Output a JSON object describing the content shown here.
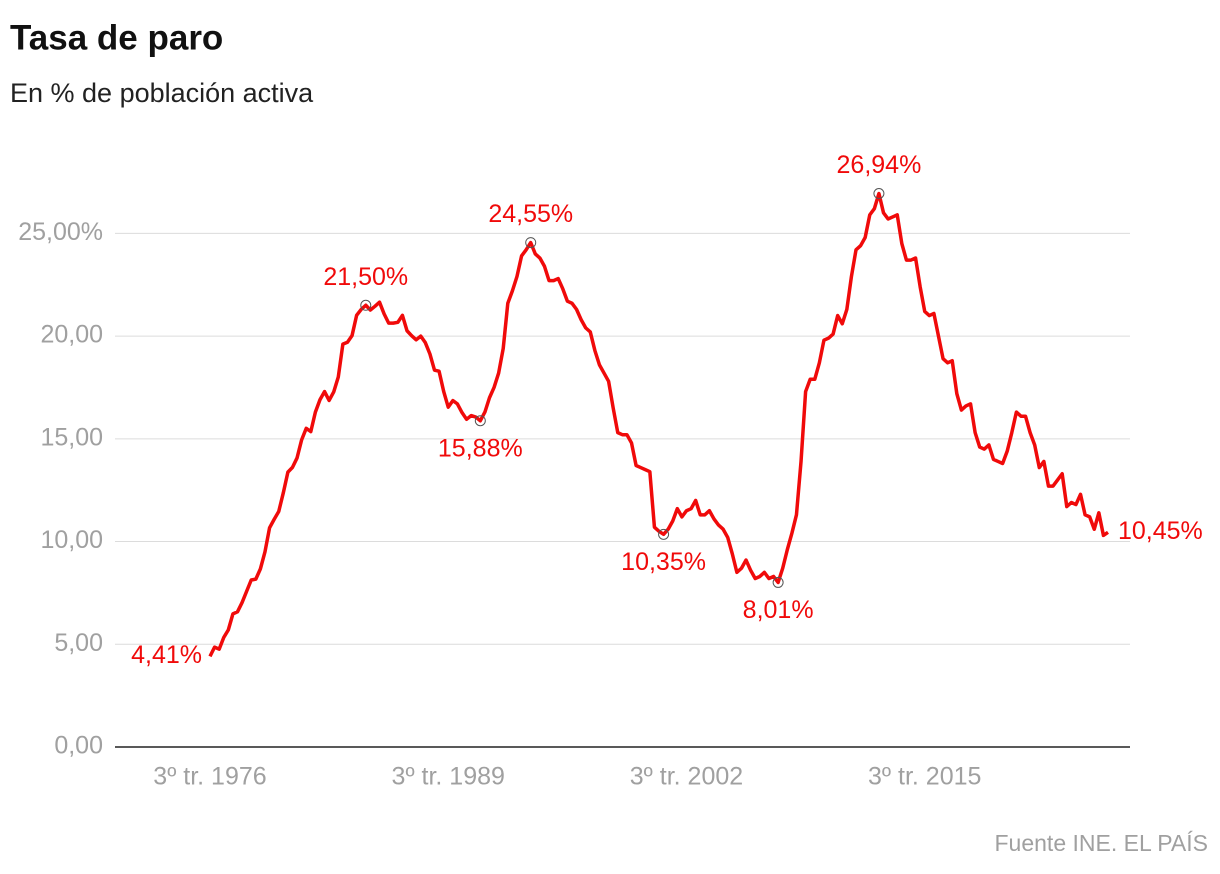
{
  "chart_data": {
    "type": "line",
    "title": "Tasa de paro",
    "subtitle": "En % de población activa",
    "source": "Fuente INE. EL PAÍS",
    "color": "#f00a0a",
    "grid": true,
    "ylim": [
      0,
      27.5
    ],
    "yticks": [
      {
        "value": 0,
        "label": "0,00"
      },
      {
        "value": 5,
        "label": "5,00"
      },
      {
        "value": 10,
        "label": "10,00"
      },
      {
        "value": 15,
        "label": "15,00"
      },
      {
        "value": 20,
        "label": "20,00"
      },
      {
        "value": 25,
        "label": "25,00%"
      }
    ],
    "categories": [
      "3º tr. 1976",
      null,
      null,
      null,
      null,
      null,
      null,
      null,
      null,
      null,
      null,
      null,
      null,
      null,
      null,
      null,
      null,
      null,
      null,
      null,
      null,
      null,
      null,
      null,
      null,
      null,
      null,
      null,
      null,
      null,
      null,
      null,
      null,
      null,
      null,
      null,
      null,
      null,
      null,
      null,
      null,
      null,
      null,
      null,
      null,
      null,
      null,
      null,
      null,
      null,
      null,
      null,
      "3º tr. 1989",
      null,
      null,
      null,
      null,
      null,
      null,
      null,
      null,
      null,
      null,
      null,
      null,
      null,
      null,
      null,
      null,
      null,
      null,
      null,
      null,
      null,
      null,
      null,
      null,
      null,
      null,
      null,
      null,
      null,
      null,
      null,
      null,
      null,
      null,
      null,
      null,
      null,
      null,
      null,
      null,
      null,
      null,
      null,
      null,
      null,
      null,
      null,
      null,
      null,
      null,
      null,
      "3º tr. 2002",
      null,
      null,
      null,
      null,
      null,
      null,
      null,
      null,
      null,
      null,
      null,
      null,
      null,
      null,
      null,
      null,
      null,
      null,
      null,
      null,
      null,
      null,
      null,
      null,
      null,
      null,
      null,
      null,
      null,
      null,
      null,
      null,
      null,
      null,
      null,
      null,
      null,
      null,
      null,
      null,
      null,
      null,
      null,
      null,
      null,
      null,
      null,
      null,
      null,
      null,
      null,
      "3º tr. 2015",
      null,
      null,
      null,
      null,
      null,
      null,
      null,
      null,
      null,
      null,
      null,
      null,
      null,
      null,
      null,
      null,
      null,
      null,
      null,
      null,
      null,
      null,
      null,
      null,
      null,
      null,
      null,
      null,
      null,
      null,
      null,
      null,
      null,
      null,
      null,
      null,
      null,
      null,
      null,
      null
    ],
    "values": [
      4.41,
      4.86,
      4.76,
      5.33,
      5.7,
      6.48,
      6.58,
      7.03,
      7.58,
      8.13,
      8.17,
      8.67,
      9.5,
      10.67,
      11.08,
      11.46,
      12.37,
      13.38,
      13.61,
      14.07,
      14.95,
      15.51,
      15.35,
      16.3,
      16.9,
      17.3,
      16.87,
      17.28,
      18.01,
      19.61,
      19.7,
      20.02,
      21.01,
      21.3,
      21.5,
      21.27,
      21.45,
      21.65,
      21.08,
      20.63,
      20.63,
      20.67,
      21.01,
      20.26,
      20.02,
      19.82,
      20.0,
      19.68,
      19.13,
      18.34,
      18.29,
      17.31,
      16.54,
      16.86,
      16.7,
      16.28,
      15.95,
      16.13,
      16.06,
      15.88,
      16.3,
      17.0,
      17.5,
      18.2,
      19.4,
      21.6,
      22.2,
      22.9,
      23.9,
      24.2,
      24.55,
      24.0,
      23.8,
      23.4,
      22.7,
      22.7,
      22.8,
      22.3,
      21.7,
      21.6,
      21.3,
      20.8,
      20.4,
      20.2,
      19.3,
      18.6,
      18.2,
      17.8,
      16.5,
      15.3,
      15.2,
      15.2,
      14.8,
      13.7,
      13.6,
      13.5,
      13.4,
      10.7,
      10.5,
      10.35,
      10.6,
      11.0,
      11.6,
      11.2,
      11.5,
      11.6,
      12.0,
      11.3,
      11.3,
      11.5,
      11.1,
      10.8,
      10.6,
      10.2,
      9.4,
      8.5,
      8.7,
      9.1,
      8.6,
      8.2,
      8.3,
      8.5,
      8.2,
      8.3,
      8.01,
      8.7,
      9.6,
      10.4,
      11.3,
      13.9,
      17.3,
      17.9,
      17.9,
      18.7,
      19.8,
      19.9,
      20.1,
      21.0,
      20.6,
      21.3,
      22.9,
      24.2,
      24.4,
      24.8,
      25.9,
      26.2,
      26.94,
      26.0,
      25.7,
      25.8,
      25.9,
      24.5,
      23.7,
      23.7,
      23.8,
      22.4,
      21.2,
      21.0,
      21.1,
      20.0,
      18.9,
      18.7,
      18.8,
      17.2,
      16.4,
      16.6,
      16.7,
      15.3,
      14.6,
      14.5,
      14.7,
      14.0,
      13.9,
      13.8,
      14.4,
      15.3,
      16.3,
      16.1,
      16.1,
      15.3,
      14.7,
      13.6,
      13.9,
      12.7,
      12.7,
      13.0,
      13.3,
      11.7,
      11.9,
      11.8,
      12.3,
      11.3,
      11.2,
      10.6,
      11.4,
      10.3,
      10.45
    ],
    "value_labels": [
      "4,41%",
      null,
      null,
      null,
      null,
      null,
      null,
      null,
      null,
      null,
      null,
      null,
      null,
      null,
      null,
      null,
      null,
      null,
      null,
      null,
      null,
      null,
      null,
      null,
      null,
      null,
      null,
      null,
      null,
      null,
      null,
      null,
      null,
      null,
      "21,50%",
      null,
      null,
      null,
      null,
      null,
      null,
      null,
      null,
      null,
      null,
      null,
      null,
      null,
      null,
      null,
      null,
      null,
      null,
      null,
      null,
      null,
      null,
      null,
      null,
      "15,88%",
      null,
      null,
      null,
      null,
      null,
      null,
      null,
      null,
      null,
      null,
      "24,55%",
      null,
      null,
      null,
      null,
      null,
      null,
      null,
      null,
      null,
      null,
      null,
      null,
      null,
      null,
      null,
      null,
      null,
      null,
      null,
      null,
      null,
      null,
      null,
      null,
      null,
      null,
      null,
      null,
      "10,35%",
      null,
      null,
      null,
      null,
      null,
      null,
      null,
      null,
      null,
      null,
      null,
      null,
      null,
      null,
      null,
      null,
      null,
      null,
      null,
      null,
      null,
      null,
      null,
      null,
      "8,01%",
      null,
      null,
      null,
      null,
      null,
      null,
      null,
      null,
      null,
      null,
      null,
      null,
      null,
      null,
      null,
      null,
      null,
      null,
      null,
      null,
      null,
      "26,94%",
      null,
      null,
      null,
      null,
      null,
      null,
      null,
      null,
      null,
      null,
      null,
      null,
      null,
      null,
      null,
      null,
      null,
      null,
      null,
      null,
      null,
      null,
      null,
      null,
      null,
      null,
      null,
      null,
      null,
      null,
      null,
      null,
      null,
      null,
      null,
      null,
      null,
      null,
      null,
      null,
      null,
      null,
      null,
      null,
      null,
      null,
      null,
      null,
      null,
      "10,45%"
    ]
  }
}
